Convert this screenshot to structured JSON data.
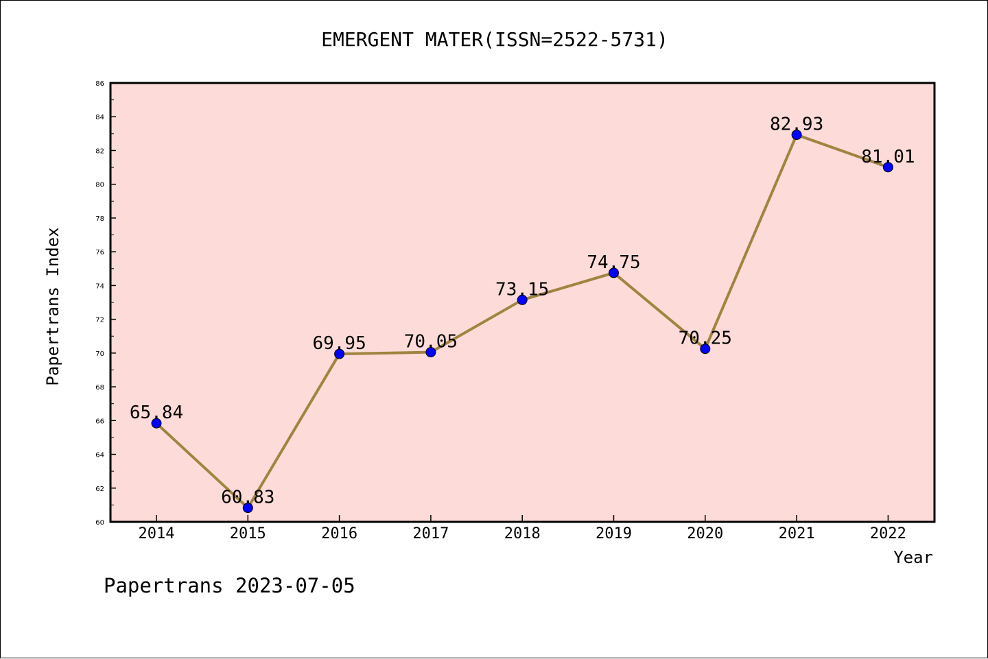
{
  "chart_data": {
    "type": "line",
    "title": "EMERGENT MATER(ISSN=2522-5731)",
    "xlabel": "Year",
    "ylabel": "Papertrans Index",
    "footer": "Papertrans 2023-07-05",
    "categories": [
      "2014",
      "2015",
      "2016",
      "2017",
      "2018",
      "2019",
      "2020",
      "2021",
      "2022"
    ],
    "values": [
      65.84,
      60.83,
      69.95,
      70.05,
      73.15,
      74.75,
      70.25,
      82.93,
      81.01
    ],
    "value_labels": [
      "65.84",
      "60.83",
      "69.95",
      "70.05",
      "73.15",
      "74.75",
      "70.25",
      "82.93",
      "81.01"
    ],
    "ylim": [
      60,
      86
    ],
    "yticks": [
      "60",
      "62",
      "64",
      "66",
      "68",
      "70",
      "72",
      "74",
      "76",
      "78",
      "80",
      "82",
      "84",
      "86"
    ],
    "grid": false,
    "colors": {
      "plot_background": "#fddbd8",
      "line": "#a08440",
      "marker": "#0000ff",
      "axis": "#000000"
    }
  }
}
